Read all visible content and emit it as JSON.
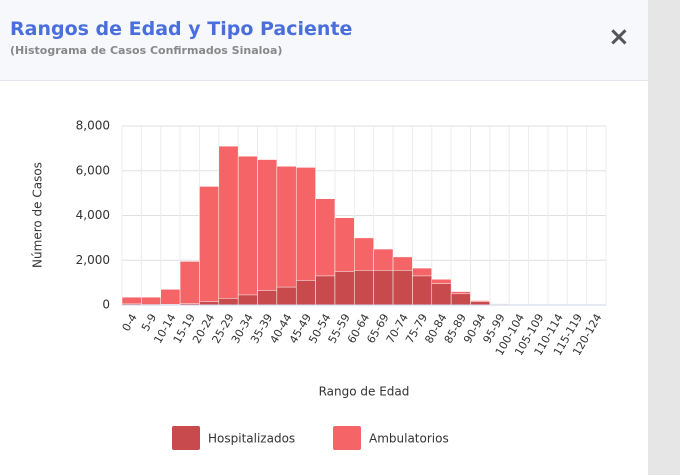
{
  "header": {
    "title": "Rangos de Edad y Tipo Paciente",
    "subtitle": "(Histograma de Casos Confirmados Sinaloa)",
    "close": "×"
  },
  "chart_data": {
    "type": "bar",
    "grouping": "overlap",
    "categories": [
      "0-4",
      "5-9",
      "10-14",
      "15-19",
      "20-24",
      "25-29",
      "30-34",
      "35-39",
      "40-44",
      "45-49",
      "50-54",
      "55-59",
      "60-64",
      "65-69",
      "70-74",
      "75-79",
      "80-84",
      "85-89",
      "90-94",
      "95-99",
      "100-104",
      "105-109",
      "110-114",
      "115-119",
      "120-124"
    ],
    "series": [
      {
        "name": "Ambulatorios",
        "color": "#f56466",
        "values": [
          350,
          350,
          700,
          1950,
          5300,
          7100,
          6650,
          6500,
          6200,
          6150,
          4750,
          3900,
          3000,
          2500,
          2150,
          1650,
          1150,
          600,
          200,
          50,
          10,
          0,
          0,
          0,
          0
        ]
      },
      {
        "name": "Hospitalizados",
        "color": "#c94a4c",
        "values": [
          50,
          20,
          30,
          60,
          150,
          300,
          450,
          650,
          800,
          1100,
          1300,
          1500,
          1550,
          1550,
          1550,
          1300,
          950,
          500,
          150,
          30,
          5,
          0,
          0,
          0,
          0
        ]
      }
    ],
    "ylim": [
      0,
      8000
    ],
    "yticks": [
      0,
      {
        "value": 2000,
        "label": "2,000"
      },
      {
        "value": 4000,
        "label": "4,000"
      },
      {
        "value": 6000,
        "label": "6,000"
      },
      {
        "value": 8000,
        "label": "8,000"
      }
    ],
    "y_label": "Número de Casos",
    "x_label": "Rango de Edad",
    "grid": true,
    "legend": "bottom"
  }
}
